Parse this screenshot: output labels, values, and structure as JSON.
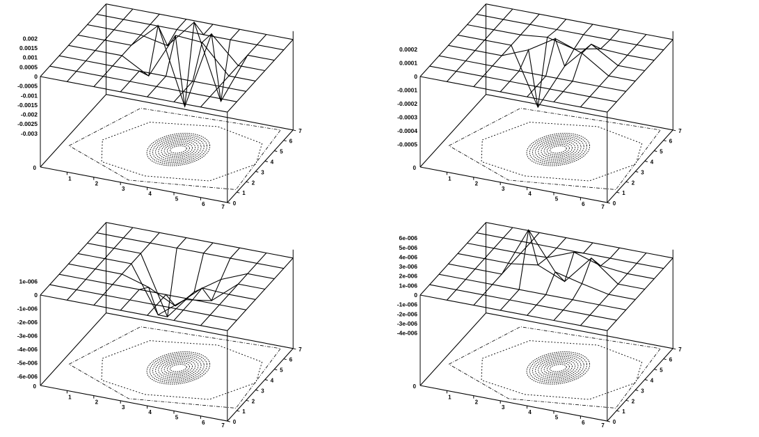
{
  "chart_data": [
    {
      "type": "surface",
      "title": "",
      "x_ticks": [
        "0",
        "1",
        "2",
        "3",
        "4",
        "5",
        "6",
        "7"
      ],
      "y_ticks": [
        "0",
        "1",
        "2",
        "3",
        "4",
        "5",
        "6",
        "7"
      ],
      "z_ticks": [
        "0.002",
        "0.0015",
        "0.001",
        "0.0005",
        "0",
        "-0.0005",
        "-0.001",
        "-0.0015",
        "-0.002",
        "-0.0025",
        "-0.003"
      ],
      "zlim": [
        -0.003,
        0.002
      ],
      "surface": [
        [
          0,
          0,
          0,
          0,
          0,
          0,
          0,
          0
        ],
        [
          0,
          0,
          0,
          0,
          0,
          0,
          0,
          0
        ],
        [
          0,
          0,
          0,
          0,
          0,
          0,
          0,
          0
        ],
        [
          0,
          0,
          0,
          -0.0008,
          0.0016,
          0.0015,
          0,
          0
        ],
        [
          0,
          0,
          0,
          0.0013,
          -0.0027,
          0.0014,
          0,
          0
        ],
        [
          0,
          0,
          0,
          -0.0003,
          0.0012,
          -0.0027,
          0,
          0
        ],
        [
          0,
          0,
          0,
          0,
          0,
          0,
          0,
          0
        ],
        [
          0,
          0,
          0,
          0,
          0,
          0,
          0,
          0
        ]
      ],
      "contour_base": true
    },
    {
      "type": "surface",
      "title": "",
      "x_ticks": [
        "0",
        "1",
        "2",
        "3",
        "4",
        "5",
        "6",
        "7"
      ],
      "y_ticks": [
        "0",
        "1",
        "2",
        "3",
        "4",
        "5",
        "6",
        "7"
      ],
      "z_ticks": [
        "0.0002",
        "0.0001",
        "0",
        "-0.0001",
        "-0.0002",
        "-0.0003",
        "-0.0004",
        "-0.0005"
      ],
      "zlim": [
        -0.0005,
        0.0002
      ],
      "surface": [
        [
          0,
          0,
          0,
          0,
          0,
          0,
          0,
          0
        ],
        [
          0,
          0,
          0,
          0,
          0,
          0,
          0,
          0
        ],
        [
          0,
          0,
          0,
          0,
          0,
          0,
          0,
          0
        ],
        [
          0,
          0,
          0,
          8e-05,
          0.0002,
          0.00013,
          0,
          0
        ],
        [
          0,
          0,
          0,
          -0.00042,
          -8e-05,
          0.00012,
          0,
          0
        ],
        [
          0,
          0,
          0,
          2e-05,
          -3e-05,
          1e-05,
          0,
          0
        ],
        [
          0,
          0,
          0,
          0,
          0,
          0,
          0,
          0
        ],
        [
          0,
          0,
          0,
          0,
          0,
          0,
          0,
          0
        ]
      ],
      "contour_base": true
    },
    {
      "type": "surface",
      "title": "",
      "x_ticks": [
        "0",
        "1",
        "2",
        "3",
        "4",
        "5",
        "6",
        "7"
      ],
      "y_ticks": [
        "0",
        "1",
        "2",
        "3",
        "4",
        "5",
        "6",
        "7"
      ],
      "z_ticks": [
        "1e-006",
        "0",
        "-1e-006",
        "-2e-006",
        "-3e-006",
        "-4e-006",
        "-5e-006",
        "-6e-006"
      ],
      "zlim": [
        -6e-06,
        1e-06
      ],
      "surface": [
        [
          0,
          0,
          0,
          0,
          0,
          0,
          0,
          0
        ],
        [
          0,
          0,
          0,
          0,
          0,
          0,
          0,
          0
        ],
        [
          0,
          0,
          0,
          0,
          0,
          0,
          0,
          0
        ],
        [
          0,
          0,
          0,
          -6e-07,
          -1.6e-06,
          1e-07,
          0,
          0
        ],
        [
          0,
          0,
          0,
          -3.4e-06,
          -1.9e-06,
          -1.6e-06,
          0,
          0
        ],
        [
          0,
          0,
          0,
          -4.3e-06,
          -2.1e-06,
          -8e-07,
          0,
          0
        ],
        [
          0,
          0,
          0,
          0,
          0,
          0,
          0,
          0
        ],
        [
          0,
          0,
          0,
          0,
          0,
          0,
          0,
          0
        ]
      ],
      "contour_base": true
    },
    {
      "type": "surface",
      "title": "",
      "x_ticks": [
        "0",
        "1",
        "2",
        "3",
        "4",
        "5",
        "6",
        "7"
      ],
      "y_ticks": [
        "0",
        "1",
        "2",
        "3",
        "4",
        "5",
        "6",
        "7"
      ],
      "z_ticks": [
        "6e-006",
        "5e-006",
        "4e-006",
        "3e-006",
        "2e-006",
        "1e-006",
        "0",
        "-1e-006",
        "-2e-006",
        "-3e-006",
        "-4e-006"
      ],
      "zlim": [
        -4e-06,
        6e-06
      ],
      "surface": [
        [
          0,
          0,
          0,
          0,
          0,
          0,
          0,
          0
        ],
        [
          0,
          0,
          0,
          0,
          0,
          0,
          0,
          0
        ],
        [
          0,
          0,
          0,
          0,
          0,
          0,
          0,
          0
        ],
        [
          0,
          0,
          0,
          5.2e-06,
          1.3e-06,
          6e-07,
          0,
          0
        ],
        [
          0,
          0,
          0,
          4e-07,
          -8e-07,
          2.2e-06,
          0,
          0
        ],
        [
          0,
          0,
          0,
          1e-07,
          1.2e-06,
          3e-07,
          0,
          0
        ],
        [
          0,
          0,
          0,
          0,
          0,
          0,
          0,
          0
        ],
        [
          0,
          0,
          0,
          0,
          0,
          0,
          0,
          0
        ]
      ],
      "contour_base": true
    }
  ]
}
